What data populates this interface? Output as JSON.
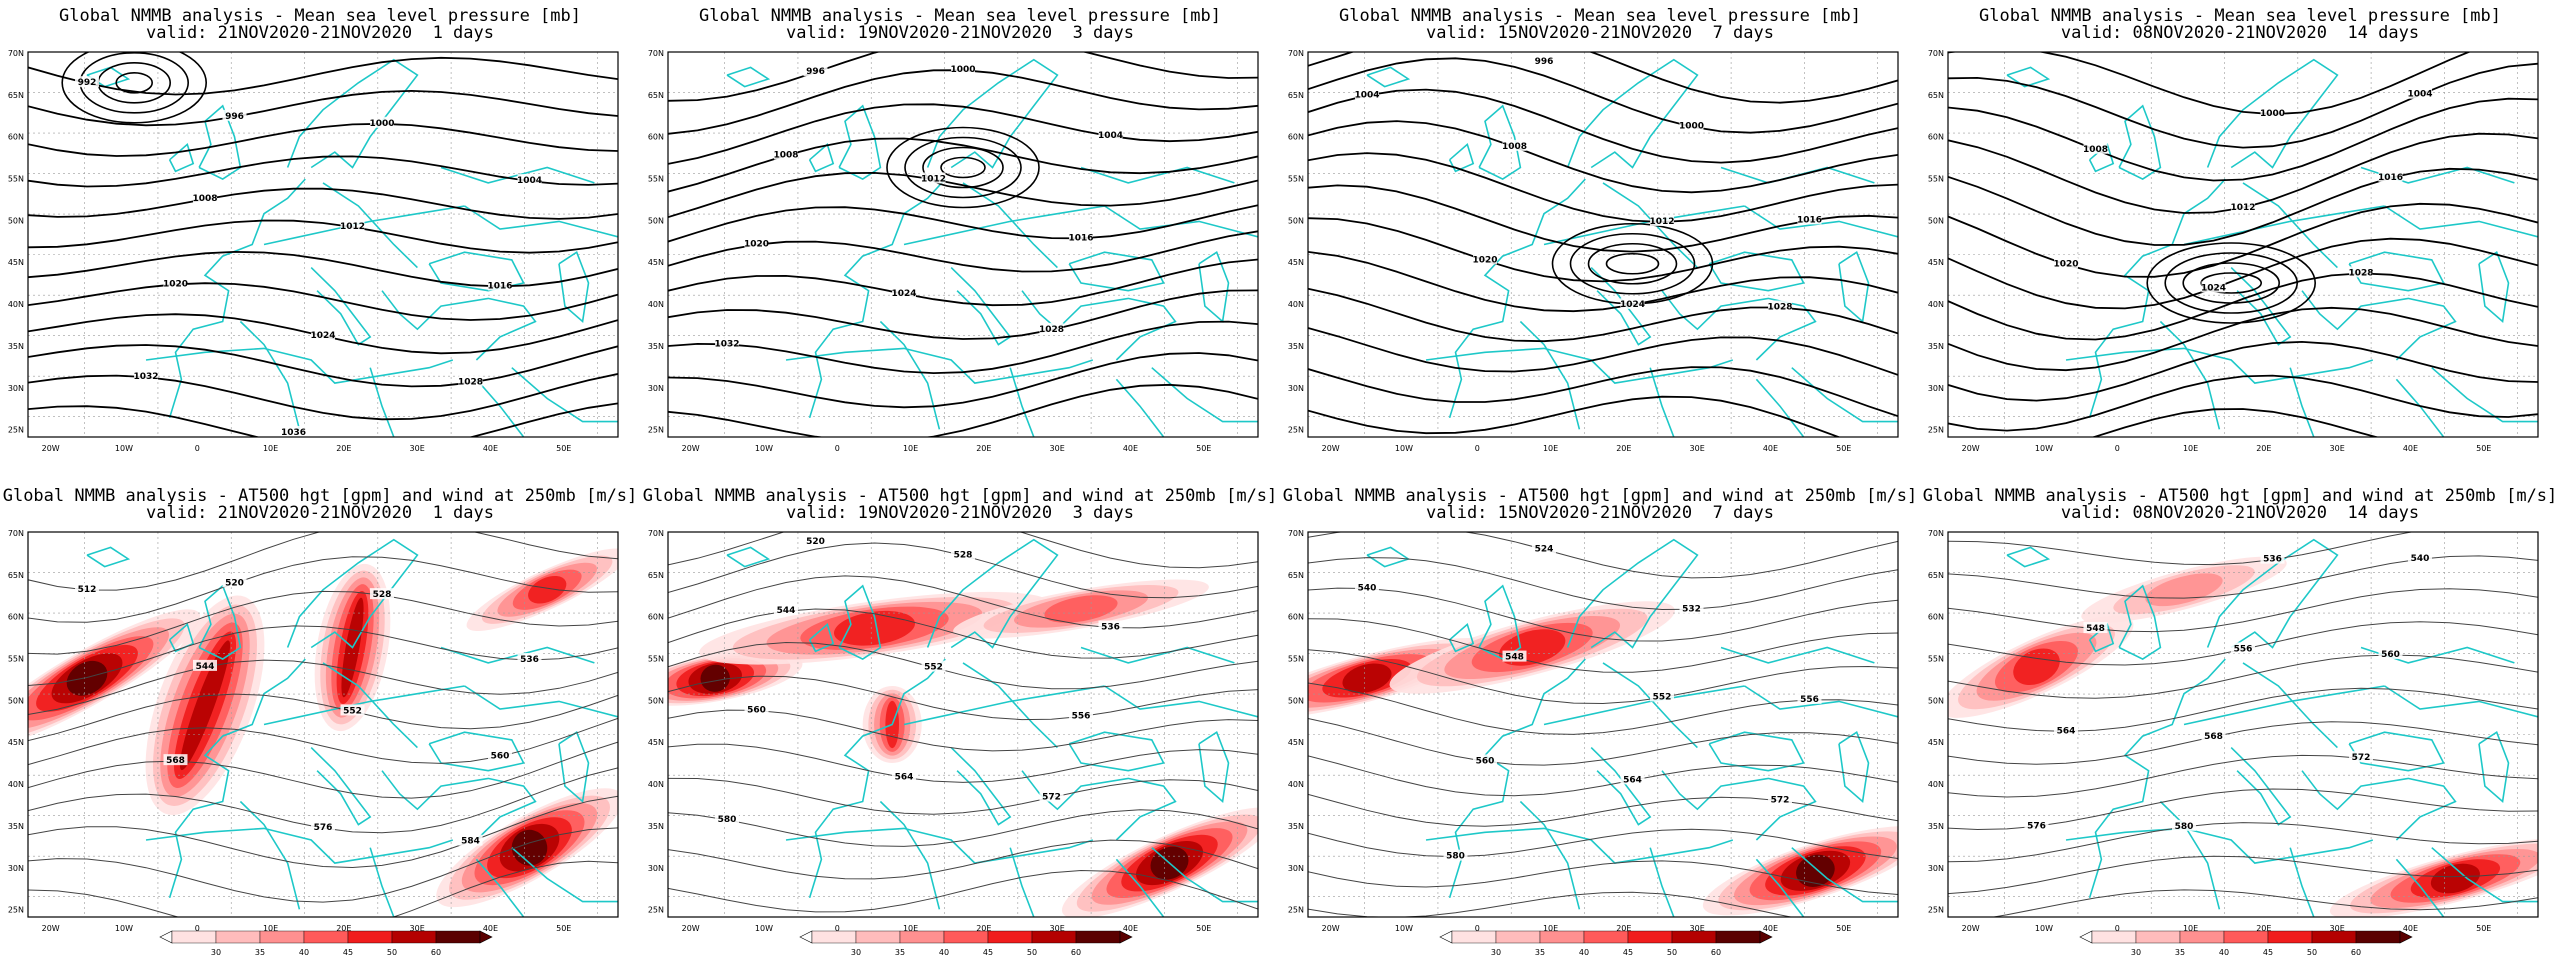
{
  "model": "Global NMMB analysis",
  "colors": {
    "contour": "#000000",
    "coast": "#1ec8c8",
    "grid": "#9a9a9a",
    "wind_scale": [
      "#ffe2e2",
      "#ffbcbc",
      "#ff9090",
      "#ff5a5a",
      "#f01c1c",
      "#b40000",
      "#5a0000"
    ]
  },
  "axes": {
    "lat_labels": [
      "70N",
      "65N",
      "60N",
      "55N",
      "50N",
      "45N",
      "40N",
      "35N",
      "30N",
      "25N"
    ],
    "lon_labels": [
      "20W",
      "10W",
      "0",
      "10E",
      "20E",
      "30E",
      "40E",
      "50E"
    ]
  },
  "rows": [
    {
      "product": "Mean sea level pressure [mb]",
      "title_prefix": "Global NMMB analysis - Mean sea level pressure [mb]",
      "panels": [
        {
          "title": "Global NMMB analysis - Mean sea level pressure [mb]",
          "valid": "valid: 21NOV2020-21NOV2020  1 days",
          "labels": [
            "992",
            "996",
            "1000",
            "1004",
            "1008",
            "1012",
            "1016",
            "1020",
            "1024",
            "1028",
            "1032",
            "1036"
          ]
        },
        {
          "title": "Global NMMB analysis - Mean sea level pressure [mb]",
          "valid": "valid: 19NOV2020-21NOV2020  3 days",
          "labels": [
            "996",
            "1000",
            "1004",
            "1008",
            "1012",
            "1016",
            "1020",
            "1024",
            "1028",
            "1032"
          ]
        },
        {
          "title": "Global NMMB analysis - Mean sea level pressure [mb]",
          "valid": "valid: 15NOV2020-21NOV2020  7 days",
          "labels": [
            "996",
            "1000",
            "1004",
            "1008",
            "1012",
            "1016",
            "1020",
            "1024",
            "1028"
          ]
        },
        {
          "title": "Global NMMB analysis - Mean sea level pressure [mb]",
          "valid": "valid: 08NOV2020-21NOV2020  14 days",
          "labels": [
            "1000",
            "1004",
            "1008",
            "1012",
            "1016",
            "1020",
            "1024",
            "1028"
          ]
        }
      ]
    },
    {
      "product": "AT500 hgt [gpm] and wind at 250mb [m/s]",
      "panels": [
        {
          "title": "Global NMMB analysis - AT500 hgt [gpm] and wind at 250mb [m/s]",
          "valid": "valid: 21NOV2020-21NOV2020  1 days",
          "labels": [
            "512",
            "520",
            "528",
            "536",
            "544",
            "552",
            "560",
            "568",
            "576",
            "584"
          ]
        },
        {
          "title": "Global NMMB analysis - AT500 hgt [gpm] and wind at 250mb [m/s]",
          "valid": "valid: 19NOV2020-21NOV2020  3 days",
          "labels": [
            "520",
            "528",
            "536",
            "544",
            "552",
            "556",
            "560",
            "564",
            "572",
            "580"
          ]
        },
        {
          "title": "Global NMMB analysis - AT500 hgt [gpm] and wind at 250mb [m/s]",
          "valid": "valid: 15NOV2020-21NOV2020  7 days",
          "labels": [
            "524",
            "532",
            "540",
            "548",
            "552",
            "556",
            "560",
            "564",
            "572",
            "580"
          ]
        },
        {
          "title": "Global NMMB analysis - AT500 hgt [gpm] and wind at 250mb [m/s]",
          "valid": "valid: 08NOV2020-21NOV2020  14 days",
          "labels": [
            "536",
            "540",
            "548",
            "556",
            "560",
            "564",
            "568",
            "572",
            "576",
            "580"
          ]
        }
      ],
      "colorbar_ticks": [
        "30",
        "35",
        "40",
        "45",
        "50",
        "60"
      ]
    }
  ]
}
